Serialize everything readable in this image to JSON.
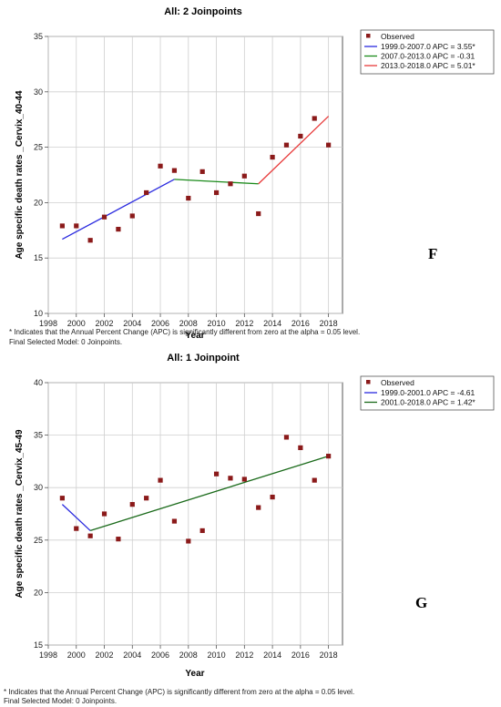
{
  "chart_data": [
    {
      "type": "line",
      "title": "All: 2 Joinpoints",
      "xlabel": "Year",
      "ylabel": "Age specific death rates _Cervix_40-44",
      "xlim": [
        1998,
        2019
      ],
      "ylim": [
        10,
        35
      ],
      "x_ticks": [
        "1998",
        "2000",
        "2002",
        "2004",
        "2006",
        "2008",
        "2010",
        "2012",
        "2014",
        "2016",
        "2018"
      ],
      "y_ticks": [
        "10",
        "15",
        "20",
        "25",
        "30",
        "35"
      ],
      "grid": true,
      "legend_position": "right",
      "observed": {
        "name": "Observed",
        "color": "#8b1a1a",
        "x": [
          1999,
          2000,
          2001,
          2002,
          2003,
          2004,
          2005,
          2006,
          2007,
          2008,
          2009,
          2010,
          2011,
          2012,
          2013,
          2014,
          2015,
          2016,
          2017,
          2018
        ],
        "y": [
          17.9,
          17.9,
          16.6,
          18.7,
          17.6,
          18.8,
          20.9,
          23.3,
          22.9,
          20.4,
          22.8,
          20.9,
          21.7,
          22.4,
          19.0,
          24.1,
          25.2,
          26.0,
          27.6,
          25.2
        ]
      },
      "segments": [
        {
          "name": "1999.0-2007.0 APC =  3.55*",
          "color": "#2a2adf",
          "x": [
            1999,
            2007
          ],
          "y": [
            16.7,
            22.1
          ]
        },
        {
          "name": "2007.0-2013.0 APC = -0.31",
          "color": "#1a8a1a",
          "x": [
            2007,
            2013
          ],
          "y": [
            22.1,
            21.7
          ]
        },
        {
          "name": "2013.0-2018.0 APC =  5.01*",
          "color": "#e83a3a",
          "x": [
            2013,
            2018
          ],
          "y": [
            21.7,
            27.8
          ]
        }
      ],
      "notes": [
        "* Indicates that the Annual Percent Change (APC) is significantly different from zero at the alpha = 0.05 level.",
        "Final Selected Model: 0 Joinpoints."
      ],
      "panel_label": "F"
    },
    {
      "type": "line",
      "title": "All: 1 Joinpoint",
      "xlabel": "Year",
      "ylabel": "Age specific death rates _Cervix_45-49",
      "xlim": [
        1998,
        2019
      ],
      "ylim": [
        15,
        40
      ],
      "x_ticks": [
        "1998",
        "2000",
        "2002",
        "2004",
        "2006",
        "2008",
        "2010",
        "2012",
        "2014",
        "2016",
        "2018"
      ],
      "y_ticks": [
        "15",
        "20",
        "25",
        "30",
        "35",
        "40"
      ],
      "grid": true,
      "legend_position": "right",
      "observed": {
        "name": "Observed",
        "color": "#8b1a1a",
        "x": [
          1999,
          2000,
          2001,
          2002,
          2003,
          2004,
          2005,
          2006,
          2007,
          2008,
          2009,
          2010,
          2011,
          2012,
          2013,
          2014,
          2015,
          2016,
          2017,
          2018
        ],
        "y": [
          29.0,
          26.1,
          25.4,
          27.5,
          25.1,
          28.4,
          29.0,
          30.7,
          26.8,
          24.9,
          25.9,
          31.3,
          30.9,
          30.8,
          28.1,
          29.1,
          34.8,
          33.8,
          30.7,
          33.0
        ]
      },
      "segments": [
        {
          "name": "1999.0-2001.0 APC = -4.61",
          "color": "#2a2adf",
          "x": [
            1999,
            2001
          ],
          "y": [
            28.4,
            25.9
          ]
        },
        {
          "name": "2001.0-2018.0 APC =  1.42*",
          "color": "#1a6a1a",
          "x": [
            2001,
            2018
          ],
          "y": [
            25.9,
            33.0
          ]
        }
      ],
      "notes": [
        "* Indicates that the Annual Percent Change (APC) is significantly different from zero at the alpha = 0.05 level.",
        "Final Selected Model: 0 Joinpoints."
      ],
      "panel_label": "G"
    }
  ]
}
